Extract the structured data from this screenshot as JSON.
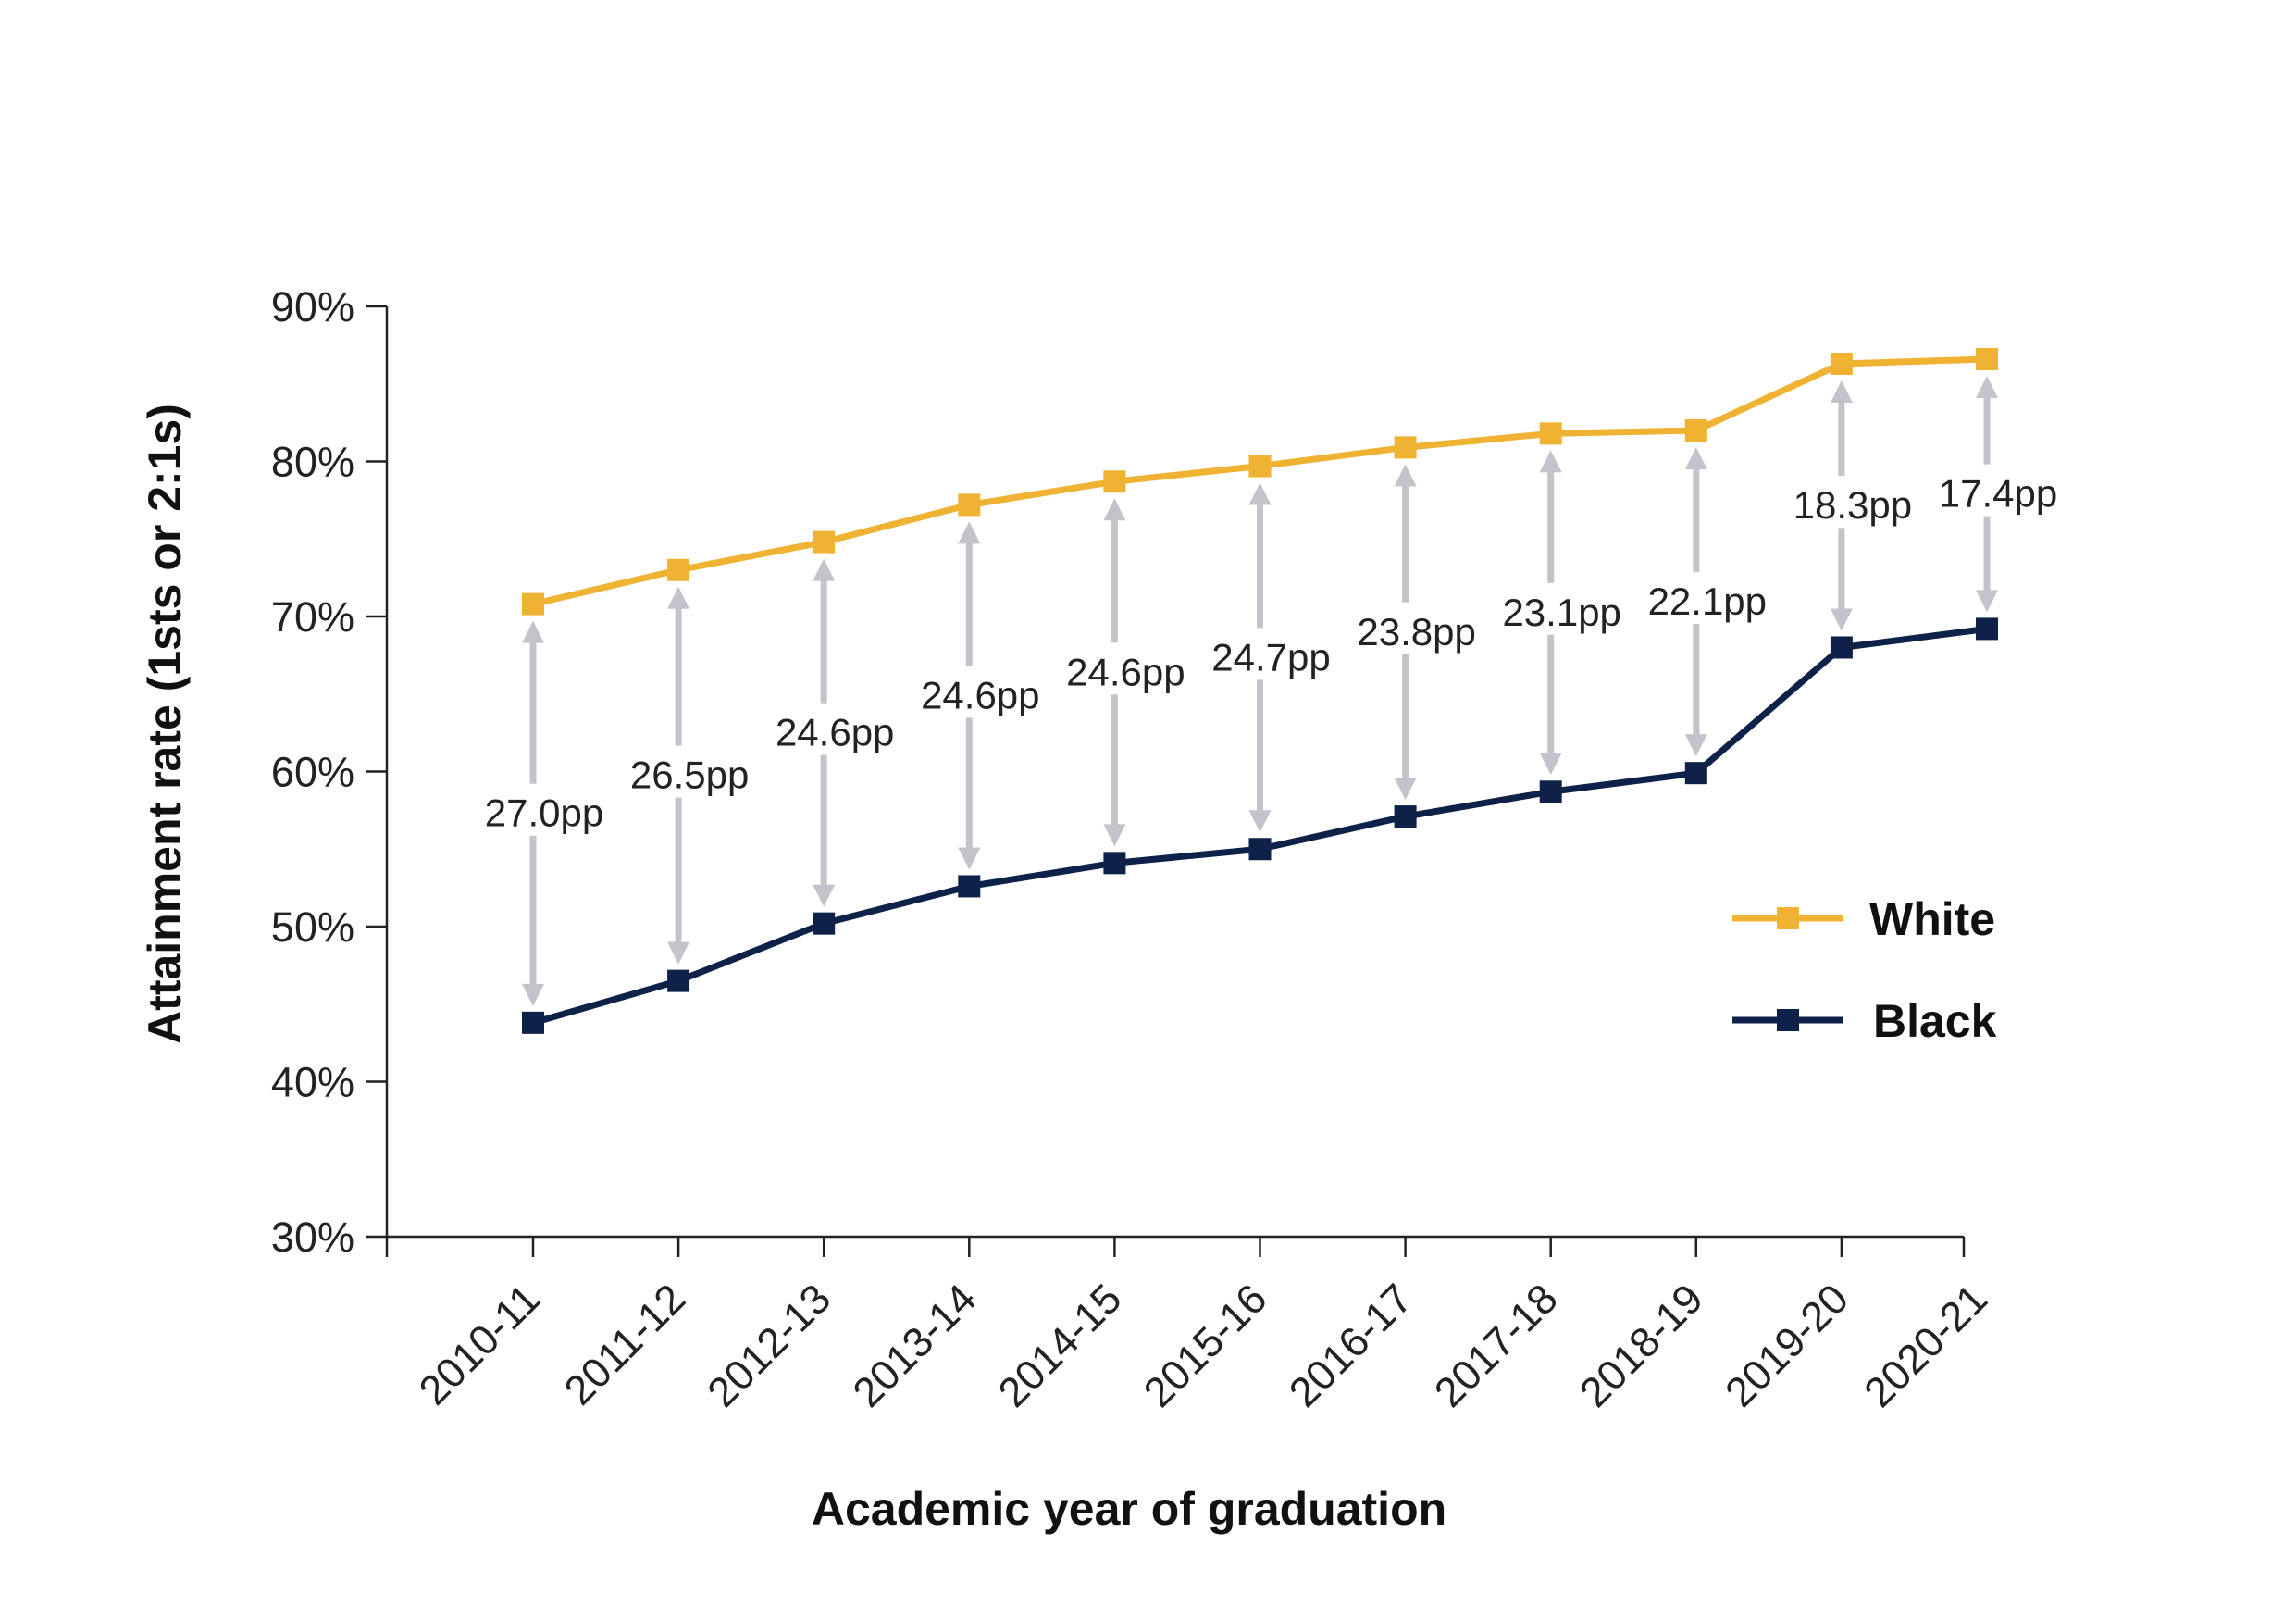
{
  "chart_data": {
    "type": "line",
    "title": "",
    "xlabel": "Academic year of graduation",
    "ylabel": "Attainment rate (1sts or 2:1s)",
    "ylim": [
      30,
      90
    ],
    "yticks": [
      "30%",
      "40%",
      "50%",
      "60%",
      "70%",
      "80%",
      "90%"
    ],
    "categories": [
      "2010-11",
      "2011-12",
      "2012-13",
      "2013-14",
      "2014-15",
      "2015-16",
      "2016-17",
      "2017-18",
      "2018-19",
      "2019-20",
      "2020-21"
    ],
    "series": [
      {
        "name": "White",
        "color": "#F0B232",
        "values": [
          70.8,
          73.0,
          74.8,
          77.2,
          78.7,
          79.7,
          80.9,
          81.8,
          82.0,
          86.3,
          86.6
        ]
      },
      {
        "name": "Black",
        "color": "#0E2148",
        "values": [
          43.8,
          46.5,
          50.2,
          52.6,
          54.1,
          55.0,
          57.1,
          58.7,
          59.9,
          68.0,
          69.2
        ]
      }
    ],
    "gap_labels": [
      "27.0pp",
      "26.5pp",
      "24.6pp",
      "24.6pp",
      "24.6pp",
      "24.7pp",
      "23.8pp",
      "23.1pp",
      "22.1pp",
      "18.3pp",
      "17.4pp"
    ],
    "gap_arrow_color": "#C4C3CB",
    "legend_position": "right"
  }
}
